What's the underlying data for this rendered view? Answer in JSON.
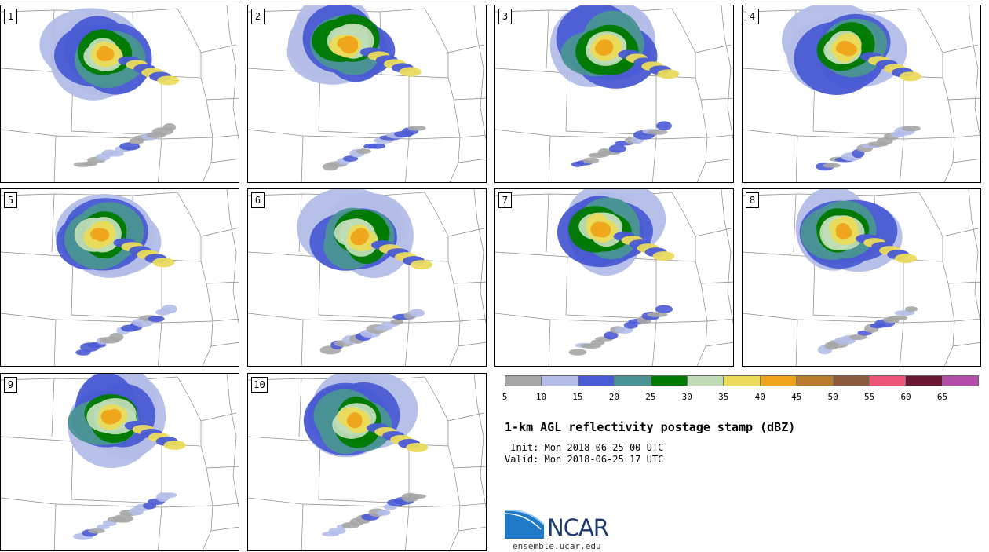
{
  "panels": [
    {
      "label": "1"
    },
    {
      "label": "2"
    },
    {
      "label": "3"
    },
    {
      "label": "4"
    },
    {
      "label": "5"
    },
    {
      "label": "6"
    },
    {
      "label": "7"
    },
    {
      "label": "8"
    },
    {
      "label": "9"
    },
    {
      "label": "10"
    }
  ],
  "colorbar": {
    "colors": [
      "#a6a6a6",
      "#b3bde8",
      "#4a5bd4",
      "#4a9394",
      "#007a00",
      "#bfdcb6",
      "#eadb5b",
      "#eea51d",
      "#b97c2c",
      "#8b5a3c",
      "#ee5378",
      "#6b1632",
      "#b24ca8"
    ],
    "ticks": [
      "5",
      "10",
      "15",
      "20",
      "25",
      "30",
      "35",
      "40",
      "45",
      "50",
      "55",
      "60",
      "65"
    ]
  },
  "title": "1-km AGL reflectivity postage stamp (dBZ)",
  "init": " Init: Mon 2018-06-25 00 UTC",
  "valid": "Valid: Mon 2018-06-25 17 UTC",
  "logo": {
    "name": "NCAR",
    "url": "ensemble.ucar.edu"
  }
}
